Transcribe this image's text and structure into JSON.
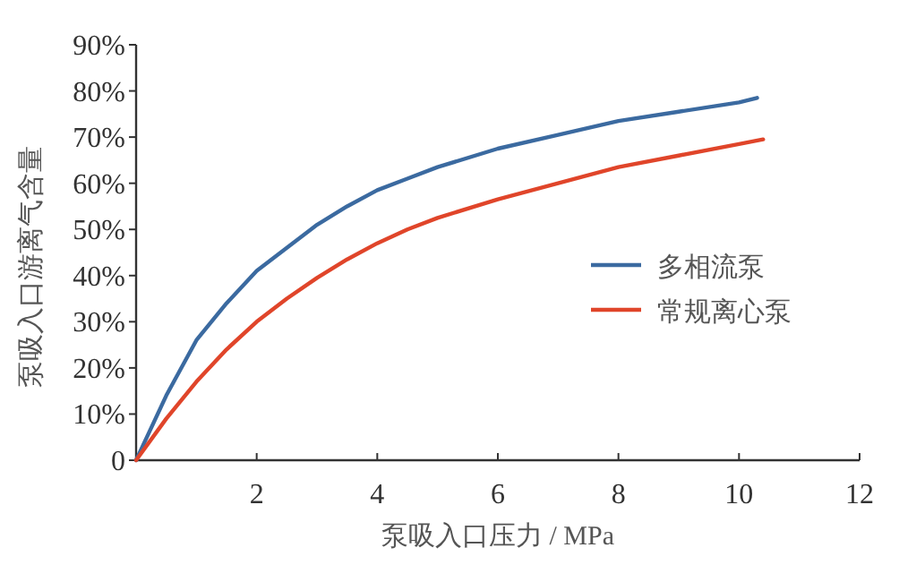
{
  "chart_data": {
    "type": "line",
    "xlabel": "泵吸入口压力 / MPa",
    "ylabel": "泵吸入口游离气含量",
    "xlim": [
      0,
      12
    ],
    "xticks": [
      2,
      4,
      6,
      8,
      10,
      12
    ],
    "ylim": [
      0,
      90
    ],
    "yticks": [
      {
        "value": 0,
        "label": "0"
      },
      {
        "value": 10,
        "label": "10%"
      },
      {
        "value": 20,
        "label": "20%"
      },
      {
        "value": 30,
        "label": "30%"
      },
      {
        "value": 40,
        "label": "40%"
      },
      {
        "value": 50,
        "label": "50%"
      },
      {
        "value": 60,
        "label": "60%"
      },
      {
        "value": 70,
        "label": "70%"
      },
      {
        "value": 80,
        "label": "80%"
      },
      {
        "value": 90,
        "label": "90%"
      }
    ],
    "legend": "right",
    "grid": false,
    "marker": "none",
    "line_style": "solid",
    "series": [
      {
        "name": "多相流泵",
        "color": "#3b6aa0",
        "x": [
          0,
          0.5,
          1,
          1.5,
          2,
          2.5,
          3,
          3.5,
          4,
          4.5,
          5,
          6,
          7,
          8,
          9,
          10,
          10.3
        ],
        "values": [
          0,
          14,
          26,
          34,
          41,
          46,
          51,
          55,
          58.5,
          61,
          63.5,
          67.5,
          70.5,
          73.5,
          75.5,
          77.5,
          78.5
        ]
      },
      {
        "name": "常规离心泵",
        "color": "#e0452a",
        "x": [
          0,
          0.5,
          1,
          1.5,
          2,
          2.5,
          3,
          3.5,
          4,
          4.5,
          5,
          6,
          7,
          8,
          9,
          10,
          10.4
        ],
        "values": [
          0,
          9,
          17,
          24,
          30,
          35,
          39.5,
          43.5,
          47,
          50,
          52.5,
          56.5,
          60,
          63.5,
          66,
          68.5,
          69.5
        ]
      }
    ]
  }
}
